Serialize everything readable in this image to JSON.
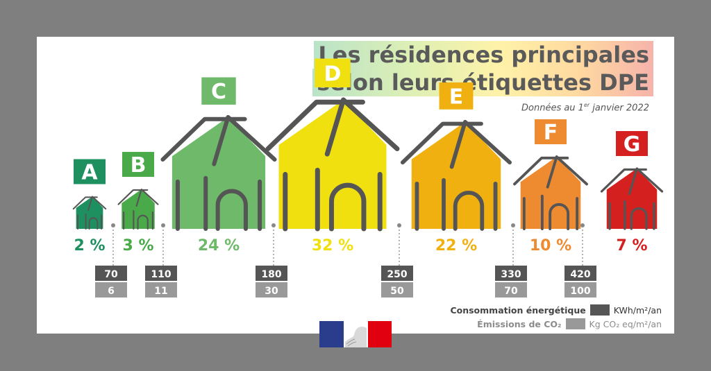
{
  "title_line1": "Les résidences principales",
  "title_line2": "selon leurs étiquettes DPE",
  "subtitle_prefix": "Données au 1",
  "subtitle_sup": "er",
  "subtitle_suffix": " janvier 2022",
  "colors": {
    "A": "#1e9060",
    "B": "#4aaa4a",
    "C": "#6fba6a",
    "D": "#f0e010",
    "E": "#efb010",
    "F": "#ee8a30",
    "G": "#d52020",
    "consumption": "#555555",
    "emissions": "#999999",
    "outline": "#555555"
  },
  "legend": {
    "consumption_label": "Consommation énergétique",
    "consumption_unit": "KWh/m²/an",
    "emissions_label": "Émissions de CO₂",
    "emissions_unit": "Kg CO₂ eq/m²/an"
  },
  "chart_data": {
    "type": "bar",
    "categories": [
      "A",
      "B",
      "C",
      "D",
      "E",
      "F",
      "G"
    ],
    "values": [
      2,
      3,
      24,
      32,
      22,
      10,
      7
    ],
    "value_labels": [
      "2 %",
      "3 %",
      "24 %",
      "32 %",
      "22 %",
      "10 %",
      "7 %"
    ],
    "unit": "%",
    "thresholds": [
      {
        "consumption": "70",
        "emissions": "6"
      },
      {
        "consumption": "110",
        "emissions": "11"
      },
      {
        "consumption": "180",
        "emissions": "30"
      },
      {
        "consumption": "250",
        "emissions": "50"
      },
      {
        "consumption": "330",
        "emissions": "70"
      },
      {
        "consumption": "420",
        "emissions": "100"
      }
    ]
  }
}
